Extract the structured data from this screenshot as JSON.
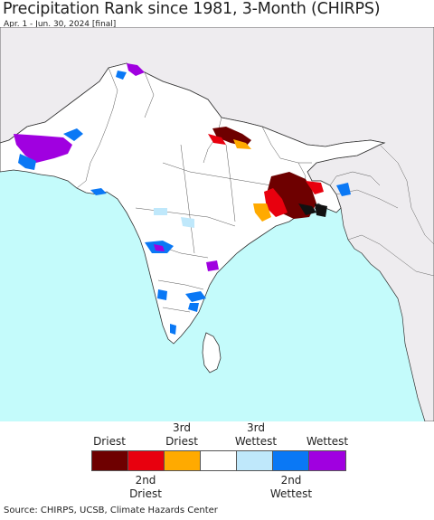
{
  "title": "Precipitation Rank since 1981, 3-Month (CHIRPS)",
  "subtitle": "Apr. 1 - Jun. 30, 2024 [final]",
  "colors": {
    "ocean": "#c4fbfb",
    "land_in_region": "#ffffff",
    "land_outside": "#eeecef",
    "border": "#333333"
  },
  "legend": {
    "top_labels": [
      "Driest",
      "3rd\nDriest",
      "3rd\nWettest",
      "Wettest"
    ],
    "bottom_labels": [
      "2nd\nDriest",
      "2nd\nWettest"
    ],
    "swatches": [
      {
        "name": "driest",
        "color": "#6e0000"
      },
      {
        "name": "2nd-driest",
        "color": "#e8000e"
      },
      {
        "name": "3rd-driest",
        "color": "#ffaa00"
      },
      {
        "name": "normal",
        "color": "#ffffff"
      },
      {
        "name": "3rd-wettest",
        "color": "#bfe8fb"
      },
      {
        "name": "2nd-wettest",
        "color": "#0a78f5"
      },
      {
        "name": "wettest",
        "color": "#a000e0"
      }
    ]
  },
  "source": "Source: CHIRPS, UCSB, Climate Hazards Center"
}
